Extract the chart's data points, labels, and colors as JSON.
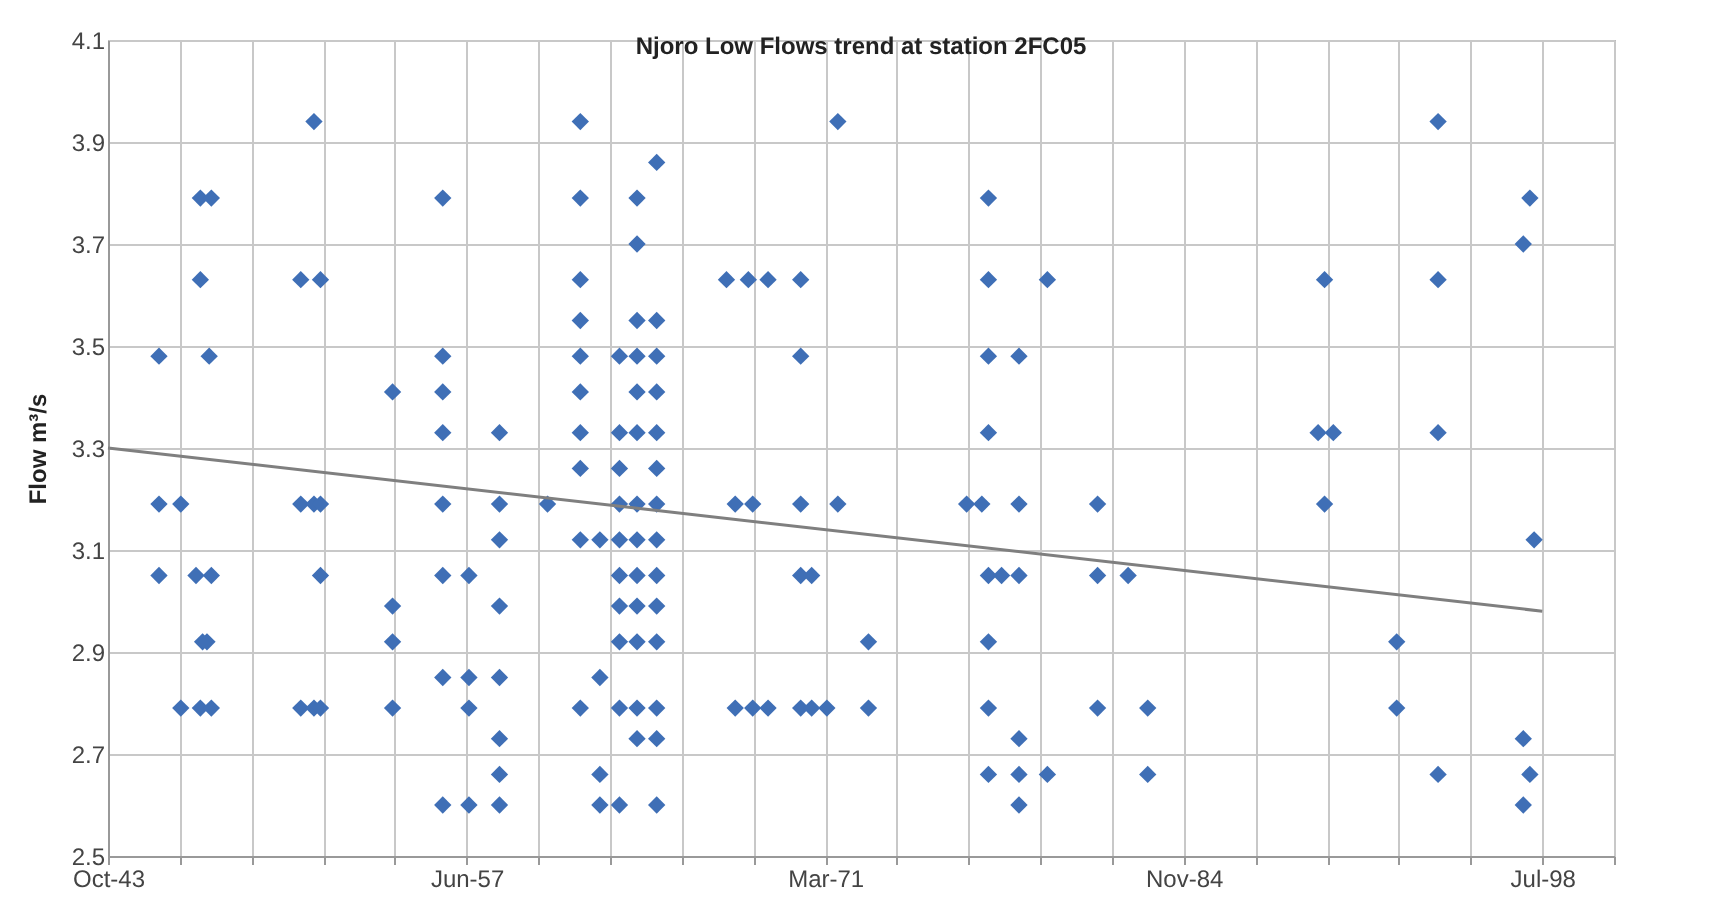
{
  "chart_data": {
    "type": "scatter",
    "title": "Njoro Low Flows trend at station 2FC05",
    "ylabel": "Flow m³/s",
    "grid": true,
    "xlim": [
      "1943-10-21",
      "2001-04-19"
    ],
    "xticks": [
      {
        "value": "1943-10-21",
        "label": "Oct-43"
      },
      {
        "value": "1946-07-17",
        "label": null
      },
      {
        "value": "1949-04-12",
        "label": null
      },
      {
        "value": "1952-01-07",
        "label": null
      },
      {
        "value": "1954-10-03",
        "label": null
      },
      {
        "value": "1957-06-29",
        "label": "Jun-57"
      },
      {
        "value": "1960-03-25",
        "label": null
      },
      {
        "value": "1962-12-20",
        "label": null
      },
      {
        "value": "1965-09-15",
        "label": null
      },
      {
        "value": "1968-06-11",
        "label": null
      },
      {
        "value": "1971-03-08",
        "label": "Mar-71"
      },
      {
        "value": "1973-12-02",
        "label": null
      },
      {
        "value": "1976-08-28",
        "label": null
      },
      {
        "value": "1979-05-25",
        "label": null
      },
      {
        "value": "1982-02-18",
        "label": null
      },
      {
        "value": "1984-11-14",
        "label": "Nov-84"
      },
      {
        "value": "1987-08-11",
        "label": null
      },
      {
        "value": "1990-05-07",
        "label": null
      },
      {
        "value": "1993-02-01",
        "label": null
      },
      {
        "value": "1995-10-28",
        "label": null
      },
      {
        "value": "1998-07-24",
        "label": "Jul-98"
      },
      {
        "value": "2001-04-19",
        "label": null
      }
    ],
    "ylim": [
      2.5,
      4.1
    ],
    "yticks": [
      2.5,
      2.7,
      2.9,
      3.1,
      3.3,
      3.5,
      3.7,
      3.9,
      4.1
    ],
    "series": [
      {
        "color": "#3f6fb6",
        "marker": "diamond",
        "x": [
          "1945-10",
          "1945-10",
          "1945-10",
          "1946-08",
          "1946-08",
          "1947-03",
          "1947-05",
          "1947-05",
          "1947-05",
          "1947-06",
          "1947-08",
          "1947-09",
          "1947-10",
          "1947-10",
          "1947-10",
          "1951-03",
          "1951-03",
          "1951-03",
          "1951-09",
          "1951-09",
          "1951-09",
          "1951-12",
          "1951-12",
          "1951-12",
          "1951-12",
          "1954-09",
          "1954-09",
          "1954-09",
          "1954-09",
          "1956-08",
          "1956-08",
          "1956-08",
          "1956-08",
          "1956-08",
          "1956-08",
          "1956-08",
          "1956-08",
          "1957-08",
          "1957-08",
          "1957-08",
          "1957-08",
          "1958-10",
          "1958-10",
          "1958-10",
          "1958-10",
          "1958-10",
          "1958-10",
          "1958-10",
          "1958-10",
          "1960-08",
          "1961-11",
          "1961-11",
          "1961-11",
          "1961-11",
          "1961-11",
          "1961-11",
          "1961-11",
          "1961-11",
          "1961-11",
          "1961-11",
          "1962-08",
          "1962-08",
          "1962-08",
          "1962-08",
          "1963-05",
          "1963-05",
          "1963-05",
          "1963-05",
          "1963-05",
          "1963-05",
          "1963-05",
          "1963-05",
          "1963-05",
          "1963-05",
          "1964-01",
          "1964-01",
          "1964-01",
          "1964-01",
          "1964-01",
          "1964-01",
          "1964-01",
          "1964-01",
          "1964-01",
          "1964-01",
          "1964-01",
          "1964-01",
          "1964-01",
          "1964-10",
          "1964-10",
          "1964-10",
          "1964-10",
          "1964-10",
          "1964-10",
          "1964-10",
          "1964-10",
          "1964-10",
          "1964-10",
          "1964-10",
          "1964-10",
          "1964-10",
          "1964-10",
          "1967-06",
          "1967-10",
          "1967-10",
          "1968-04",
          "1968-06",
          "1968-06",
          "1969-01",
          "1969-01",
          "1970-04",
          "1970-04",
          "1970-04",
          "1970-04",
          "1970-04",
          "1970-09",
          "1970-09",
          "1971-04",
          "1971-09",
          "1971-09",
          "1972-11",
          "1972-11",
          "1976-08",
          "1977-03",
          "1977-06",
          "1977-06",
          "1977-06",
          "1977-06",
          "1977-06",
          "1977-06",
          "1977-06",
          "1977-06",
          "1977-12",
          "1978-08",
          "1978-08",
          "1978-08",
          "1978-08",
          "1978-08",
          "1978-08",
          "1979-09",
          "1979-09",
          "1981-08",
          "1981-08",
          "1981-08",
          "1982-10",
          "1983-07",
          "1983-07",
          "1990-01",
          "1990-04",
          "1990-04",
          "1990-08",
          "1993-01",
          "1993-01",
          "1994-08",
          "1994-08",
          "1994-08",
          "1994-08",
          "1997-11",
          "1997-11",
          "1997-11",
          "1998-02",
          "1998-02",
          "1998-04"
        ],
        "values": [
          3.48,
          3.19,
          3.05,
          3.19,
          2.79,
          3.05,
          3.79,
          3.63,
          2.79,
          2.92,
          2.92,
          3.48,
          3.79,
          3.05,
          2.79,
          3.63,
          3.19,
          2.79,
          3.94,
          3.19,
          2.79,
          3.63,
          3.19,
          3.05,
          2.79,
          3.41,
          2.99,
          2.92,
          2.79,
          3.79,
          3.48,
          3.41,
          3.33,
          3.19,
          3.05,
          2.85,
          2.6,
          3.05,
          2.85,
          2.79,
          2.6,
          3.33,
          3.19,
          3.12,
          2.99,
          2.85,
          2.73,
          2.66,
          2.6,
          3.19,
          3.94,
          3.79,
          3.63,
          3.55,
          3.48,
          3.41,
          3.33,
          3.26,
          3.12,
          2.79,
          3.12,
          2.85,
          2.66,
          2.6,
          3.48,
          3.33,
          3.26,
          3.19,
          3.12,
          3.05,
          2.99,
          2.92,
          2.79,
          2.6,
          3.79,
          3.7,
          3.55,
          3.48,
          3.41,
          3.33,
          3.19,
          3.12,
          3.05,
          2.99,
          2.92,
          2.79,
          2.73,
          3.86,
          3.55,
          3.48,
          3.41,
          3.33,
          3.26,
          3.19,
          3.12,
          3.05,
          2.99,
          2.92,
          2.79,
          2.73,
          2.6,
          3.63,
          3.19,
          2.79,
          3.63,
          3.19,
          2.79,
          3.63,
          2.79,
          3.63,
          3.48,
          3.19,
          3.05,
          2.79,
          3.05,
          2.79,
          2.79,
          3.94,
          3.19,
          2.92,
          2.79,
          3.19,
          3.19,
          3.79,
          3.63,
          3.48,
          3.33,
          3.05,
          2.92,
          2.79,
          2.66,
          3.05,
          3.48,
          3.19,
          3.05,
          2.73,
          2.66,
          2.6,
          3.63,
          2.66,
          3.19,
          3.05,
          2.79,
          3.05,
          2.79,
          2.66,
          3.33,
          3.63,
          3.19,
          3.33,
          2.92,
          2.79,
          3.94,
          3.63,
          3.33,
          2.66,
          3.7,
          2.73,
          2.6,
          3.79,
          2.66,
          3.12
        ]
      },
      {
        "type": "line",
        "color": "#7f7f7f",
        "x": [
          "1943-10-21",
          "1998-07-24"
        ],
        "values": [
          3.3,
          2.98
        ]
      }
    ]
  }
}
